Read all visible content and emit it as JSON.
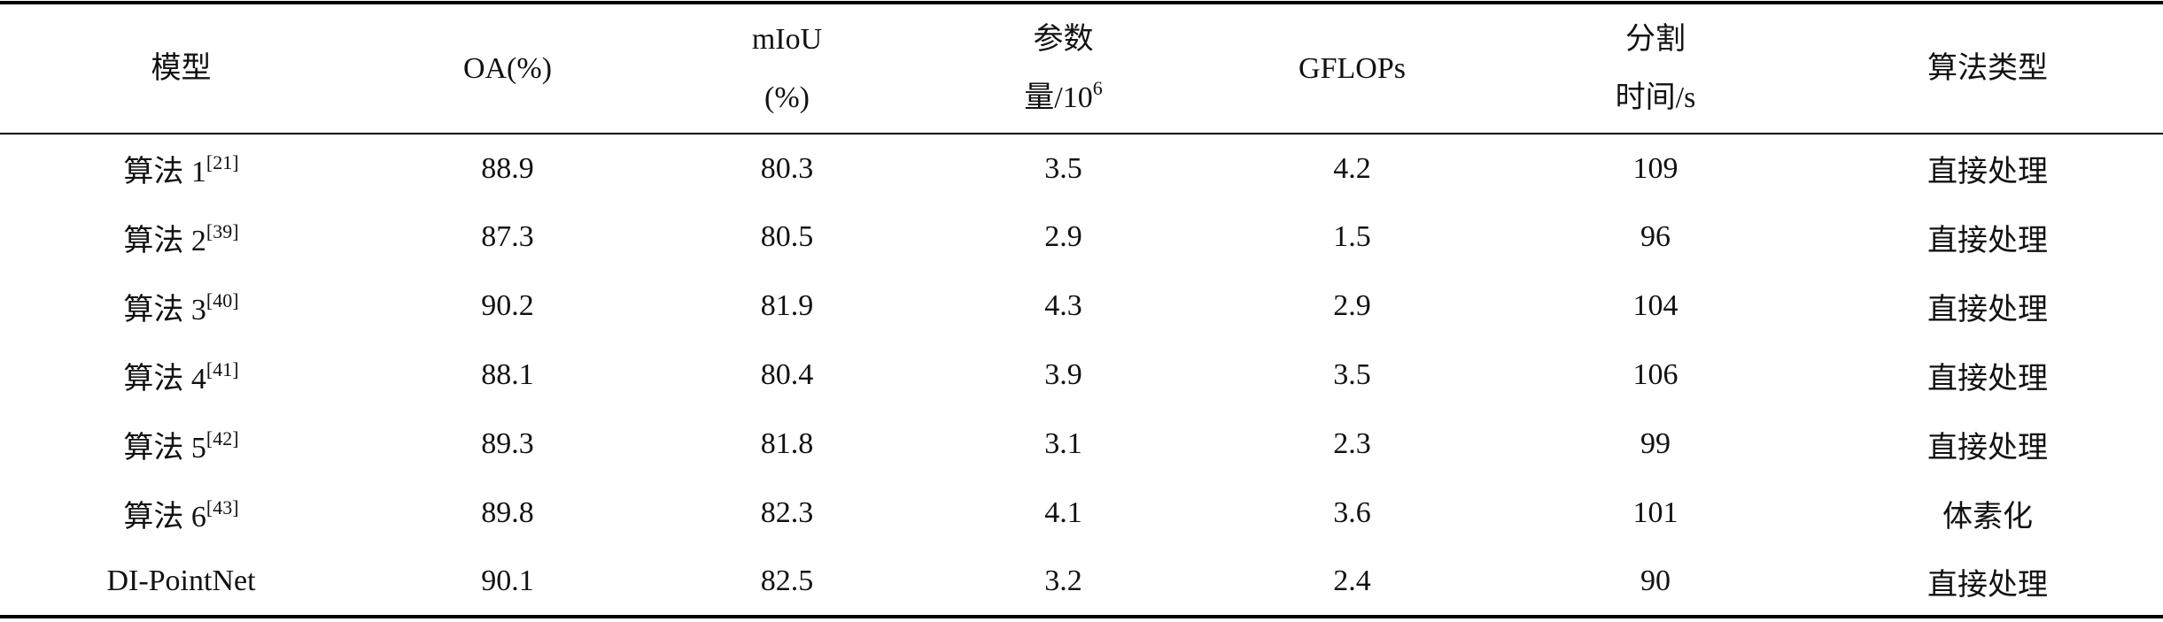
{
  "table": {
    "header": [
      {
        "lines": [
          "模型"
        ]
      },
      {
        "lines": [
          "OA(%)"
        ]
      },
      {
        "lines": [
          "mIoU",
          "(%)"
        ]
      },
      {
        "lines": [
          "参数",
          "量/10"
        ],
        "sup": "6"
      },
      {
        "lines": [
          "GFLOPs"
        ]
      },
      {
        "lines": [
          "分割",
          "时间/s"
        ]
      },
      {
        "lines": [
          "算法类型"
        ]
      }
    ],
    "rows": [
      [
        {
          "text": "算法 1",
          "sup": "[21]"
        },
        88.9,
        80.3,
        3.5,
        4.2,
        109,
        "直接处理"
      ],
      [
        {
          "text": "算法 2",
          "sup": "[39]"
        },
        87.3,
        80.5,
        2.9,
        1.5,
        96,
        "直接处理"
      ],
      [
        {
          "text": "算法 3",
          "sup": "[40]"
        },
        90.2,
        81.9,
        4.3,
        2.9,
        104,
        "直接处理"
      ],
      [
        {
          "text": "算法 4",
          "sup": "[41]"
        },
        88.1,
        80.4,
        3.9,
        3.5,
        106,
        "直接处理"
      ],
      [
        {
          "text": "算法 5",
          "sup": "[42]"
        },
        89.3,
        81.8,
        3.1,
        2.3,
        99,
        "直接处理"
      ],
      [
        {
          "text": "算法 6",
          "sup": "[43]"
        },
        89.8,
        82.3,
        4.1,
        3.6,
        101,
        "体素化"
      ],
      [
        {
          "text": "DI-PointNet"
        },
        90.1,
        82.5,
        3.2,
        2.4,
        90,
        "直接处理"
      ]
    ]
  }
}
